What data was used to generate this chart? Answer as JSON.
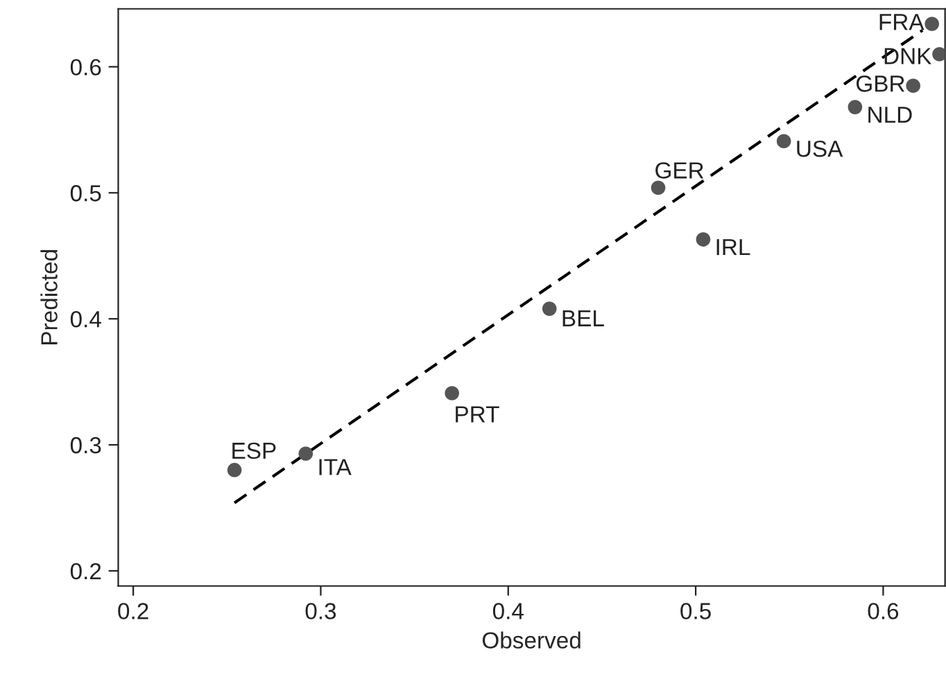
{
  "chart_data": {
    "type": "scatter",
    "xlabel": "Observed",
    "ylabel": "Predicted",
    "xlim": [
      0.192,
      0.633
    ],
    "ylim": [
      0.188,
      0.646
    ],
    "xticks": [
      0.2,
      0.3,
      0.4,
      0.5,
      0.6
    ],
    "yticks": [
      0.2,
      0.3,
      0.4,
      0.5,
      0.6
    ],
    "grid": false,
    "series": [
      {
        "marker": "circle",
        "color": "#555555",
        "x": [
          0.626,
          0.63,
          0.616,
          0.585,
          0.547,
          0.48,
          0.504,
          0.422,
          0.37,
          0.292,
          0.254
        ],
        "values": [
          0.634,
          0.61,
          0.585,
          0.568,
          0.541,
          0.504,
          0.463,
          0.408,
          0.341,
          0.293,
          0.28
        ]
      },
      {
        "type": "line",
        "color": "#000000",
        "line_style": "dashed",
        "marker": "none",
        "x": [
          0.254,
          0.621
        ],
        "values": [
          0.254,
          0.629
        ]
      }
    ],
    "annotations": [
      {
        "text": "FRA",
        "x": 0.626,
        "y": 0.634
      },
      {
        "text": "DNK",
        "x": 0.63,
        "y": 0.61
      },
      {
        "text": "GBR",
        "x": 0.616,
        "y": 0.585
      },
      {
        "text": "NLD",
        "x": 0.585,
        "y": 0.568
      },
      {
        "text": "USA",
        "x": 0.547,
        "y": 0.541
      },
      {
        "text": "GER",
        "x": 0.48,
        "y": 0.504
      },
      {
        "text": "IRL",
        "x": 0.504,
        "y": 0.463
      },
      {
        "text": "BEL",
        "x": 0.422,
        "y": 0.408
      },
      {
        "text": "PRT",
        "x": 0.37,
        "y": 0.341
      },
      {
        "text": "ITA",
        "x": 0.292,
        "y": 0.293
      },
      {
        "text": "ESP",
        "x": 0.254,
        "y": 0.28
      }
    ]
  }
}
